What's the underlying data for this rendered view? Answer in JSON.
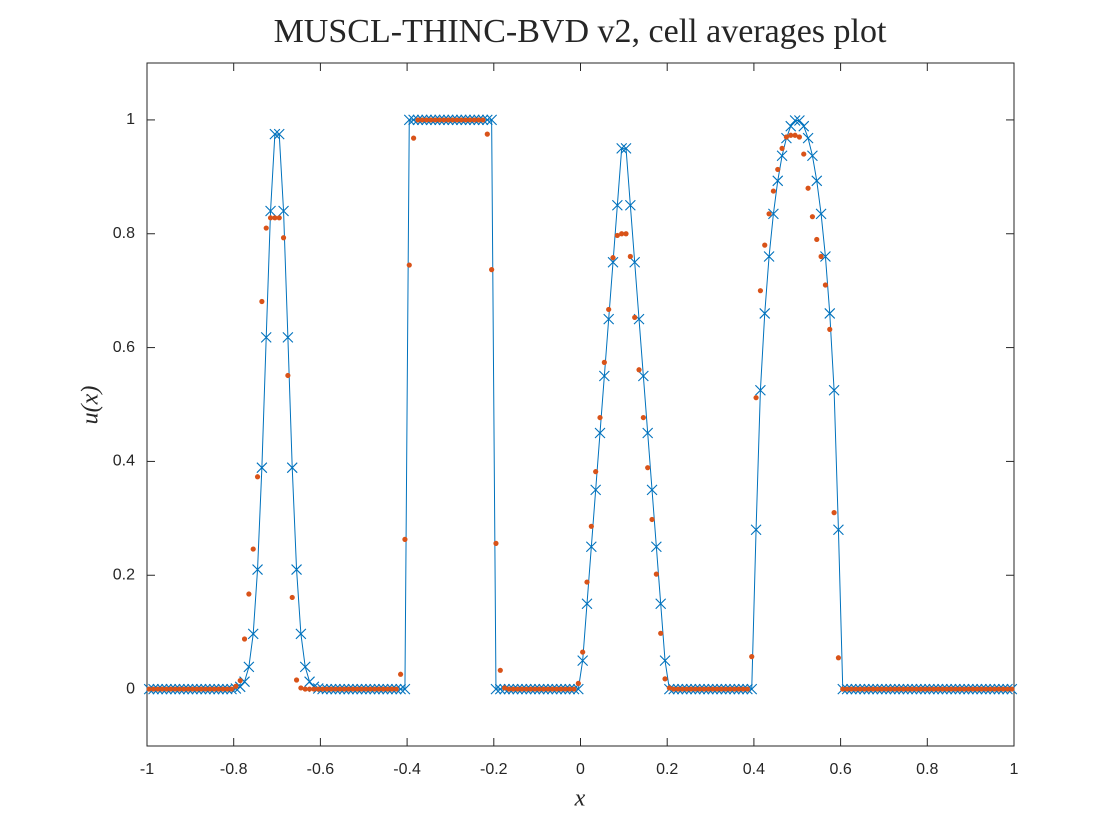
{
  "chart_data": {
    "type": "line",
    "title": "MUSCL-THINC-BVD v2, cell averages plot",
    "xlabel": "x",
    "ylabel": "u(x)",
    "xlim": [
      -1,
      1
    ],
    "ylim": [
      -0.1,
      1.1
    ],
    "xticks": [
      -1,
      -0.8,
      -0.6,
      -0.4,
      -0.2,
      0,
      0.2,
      0.4,
      0.6,
      0.8,
      1
    ],
    "yticks": [
      0,
      0.2,
      0.4,
      0.6,
      0.8,
      1
    ],
    "grid": false,
    "x": [
      -0.995,
      -0.985,
      -0.975,
      -0.965,
      -0.955,
      -0.945,
      -0.935,
      -0.925,
      -0.915,
      -0.905,
      -0.895,
      -0.885,
      -0.875,
      -0.865,
      -0.855,
      -0.845,
      -0.835,
      -0.825,
      -0.815,
      -0.805,
      -0.795,
      -0.785,
      -0.775,
      -0.765,
      -0.755,
      -0.745,
      -0.735,
      -0.725,
      -0.715,
      -0.705,
      -0.695,
      -0.685,
      -0.675,
      -0.665,
      -0.655,
      -0.645,
      -0.635,
      -0.625,
      -0.615,
      -0.605,
      -0.595,
      -0.585,
      -0.575,
      -0.565,
      -0.555,
      -0.545,
      -0.535,
      -0.525,
      -0.515,
      -0.505,
      -0.495,
      -0.485,
      -0.475,
      -0.465,
      -0.455,
      -0.445,
      -0.435,
      -0.425,
      -0.415,
      -0.405,
      -0.395,
      -0.385,
      -0.375,
      -0.365,
      -0.355,
      -0.345,
      -0.335,
      -0.325,
      -0.315,
      -0.305,
      -0.295,
      -0.285,
      -0.275,
      -0.265,
      -0.255,
      -0.245,
      -0.235,
      -0.225,
      -0.215,
      -0.205,
      -0.195,
      -0.185,
      -0.175,
      -0.165,
      -0.155,
      -0.145,
      -0.135,
      -0.125,
      -0.115,
      -0.105,
      -0.095,
      -0.085,
      -0.075,
      -0.065,
      -0.055,
      -0.045,
      -0.035,
      -0.025,
      -0.015,
      -0.005,
      0.005,
      0.015,
      0.025,
      0.035,
      0.045,
      0.055,
      0.065,
      0.075,
      0.085,
      0.095,
      0.105,
      0.115,
      0.125,
      0.135,
      0.145,
      0.155,
      0.165,
      0.175,
      0.185,
      0.195,
      0.205,
      0.215,
      0.225,
      0.235,
      0.245,
      0.255,
      0.265,
      0.275,
      0.285,
      0.295,
      0.305,
      0.315,
      0.325,
      0.335,
      0.345,
      0.355,
      0.365,
      0.375,
      0.385,
      0.395,
      0.405,
      0.415,
      0.425,
      0.435,
      0.445,
      0.455,
      0.465,
      0.475,
      0.485,
      0.495,
      0.505,
      0.515,
      0.525,
      0.535,
      0.545,
      0.555,
      0.565,
      0.575,
      0.585,
      0.595,
      0.605,
      0.615,
      0.625,
      0.635,
      0.645,
      0.655,
      0.665,
      0.675,
      0.685,
      0.695,
      0.705,
      0.715,
      0.725,
      0.735,
      0.745,
      0.755,
      0.765,
      0.775,
      0.785,
      0.795,
      0.805,
      0.815,
      0.825,
      0.835,
      0.845,
      0.855,
      0.865,
      0.875,
      0.885,
      0.895,
      0.905,
      0.915,
      0.925,
      0.935,
      0.945,
      0.955,
      0.965,
      0.975,
      0.985,
      0.995
    ],
    "series": [
      {
        "color": "#0072bd",
        "marker": "x",
        "line": true,
        "values": [
          0,
          0,
          0,
          0,
          0,
          0,
          0,
          0,
          0,
          0,
          0,
          0,
          0,
          0,
          0,
          0,
          0,
          0,
          0,
          0,
          0.001,
          0.004,
          0.013,
          0.039,
          0.097,
          0.21,
          0.389,
          0.618,
          0.84,
          0.975,
          0.975,
          0.84,
          0.618,
          0.389,
          0.21,
          0.097,
          0.039,
          0.013,
          0.004,
          0.001,
          0,
          0,
          0,
          0,
          0,
          0,
          0,
          0,
          0,
          0,
          0,
          0,
          0,
          0,
          0,
          0,
          0,
          0,
          0,
          0,
          1,
          1,
          1,
          1,
          1,
          1,
          1,
          1,
          1,
          1,
          1,
          1,
          1,
          1,
          1,
          1,
          1,
          1,
          1,
          1,
          0,
          0,
          0,
          0,
          0,
          0,
          0,
          0,
          0,
          0,
          0,
          0,
          0,
          0,
          0,
          0,
          0,
          0,
          0,
          0,
          0.05,
          0.15,
          0.25,
          0.35,
          0.45,
          0.55,
          0.65,
          0.75,
          0.85,
          0.95,
          0.95,
          0.85,
          0.75,
          0.65,
          0.55,
          0.45,
          0.35,
          0.25,
          0.15,
          0.05,
          0,
          0,
          0,
          0,
          0,
          0,
          0,
          0,
          0,
          0,
          0,
          0,
          0,
          0,
          0,
          0,
          0,
          0,
          0,
          0,
          0.28,
          0.525,
          0.66,
          0.76,
          0.835,
          0.893,
          0.937,
          0.968,
          0.989,
          0.999,
          0.999,
          0.989,
          0.968,
          0.937,
          0.893,
          0.835,
          0.76,
          0.66,
          0.525,
          0.28,
          0,
          0,
          0,
          0,
          0,
          0,
          0,
          0,
          0,
          0,
          0,
          0,
          0,
          0,
          0,
          0,
          0,
          0,
          0,
          0,
          0,
          0,
          0,
          0,
          0,
          0,
          0,
          0,
          0,
          0,
          0,
          0,
          0,
          0,
          0,
          0,
          0,
          0,
          0,
          0
        ]
      },
      {
        "color": "#d95319",
        "marker": "dot",
        "line": false,
        "values": [
          0,
          0,
          0,
          0,
          0,
          0,
          0,
          0,
          0,
          0,
          0,
          0,
          0,
          0,
          0,
          0,
          0,
          0,
          0,
          0,
          0.005,
          0.015,
          0.088,
          0.167,
          0.246,
          0.373,
          0.681,
          0.81,
          0.828,
          0.828,
          0.828,
          0.793,
          0.551,
          0.161,
          0.016,
          0.002,
          0,
          0,
          0,
          0,
          0,
          0,
          0,
          0,
          0,
          0,
          0,
          0,
          0,
          0,
          0,
          0,
          0,
          0,
          0,
          0,
          0,
          0,
          0.026,
          0.263,
          0.745,
          0.968,
          1,
          1,
          1,
          1,
          1,
          1,
          1,
          1,
          1,
          1,
          1,
          1,
          1,
          1,
          1,
          1,
          0.975,
          0.737,
          0.256,
          0.033,
          0.002,
          0,
          0,
          0,
          0,
          0,
          0,
          0,
          0,
          0,
          0,
          0,
          0,
          0,
          0,
          0,
          0,
          0.01,
          0.065,
          0.188,
          0.286,
          0.382,
          0.477,
          0.574,
          0.667,
          0.758,
          0.797,
          0.8,
          0.8,
          0.76,
          0.653,
          0.561,
          0.477,
          0.389,
          0.298,
          0.202,
          0.098,
          0.018,
          0.002,
          0,
          0,
          0,
          0,
          0,
          0,
          0,
          0,
          0,
          0,
          0,
          0,
          0,
          0,
          0,
          0,
          0,
          0,
          0.057,
          0.512,
          0.7,
          0.78,
          0.835,
          0.875,
          0.913,
          0.95,
          0.97,
          0.973,
          0.973,
          0.97,
          0.94,
          0.88,
          0.83,
          0.79,
          0.76,
          0.71,
          0.632,
          0.31,
          0.055,
          0,
          0,
          0,
          0,
          0,
          0,
          0,
          0,
          0,
          0,
          0,
          0,
          0,
          0,
          0,
          0,
          0,
          0,
          0,
          0,
          0,
          0,
          0,
          0,
          0,
          0,
          0,
          0,
          0,
          0,
          0,
          0,
          0,
          0,
          0,
          0,
          0,
          0,
          0,
          0
        ]
      }
    ]
  }
}
